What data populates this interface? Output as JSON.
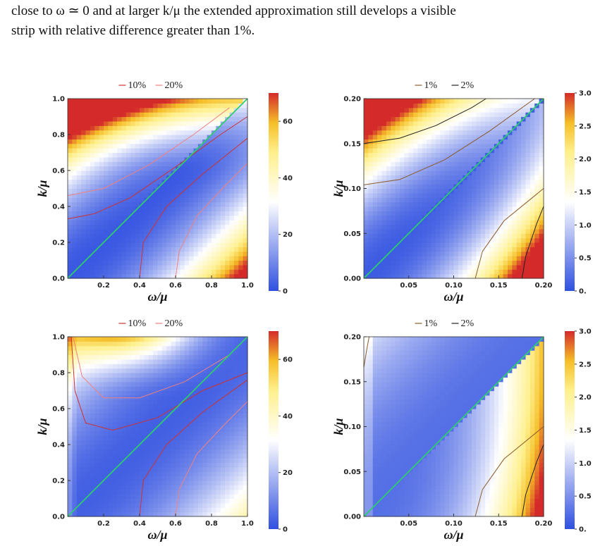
{
  "paragraph": {
    "line1": "close to ω ≃ 0 and at larger k/μ the extended approximation still develops a visible",
    "line2": "strip with relative difference greater than 1%."
  },
  "chart_data": [
    {
      "type": "heatmap",
      "panel": "top-left",
      "xlabel": "ω/μ",
      "ylabel": "k/μ",
      "xlim": [
        0,
        1.0
      ],
      "ylim": [
        0,
        1.0
      ],
      "x_ticks": [
        "0.2",
        "0.4",
        "0.6",
        "0.8",
        "1.0"
      ],
      "y_ticks": [
        "0.0",
        "0.2",
        "0.4",
        "0.6",
        "0.8",
        "1.0"
      ],
      "legend": [
        "10%",
        "20%"
      ],
      "contour_colors": [
        "#d03030",
        "#f08080"
      ],
      "colorbar": {
        "min": 0,
        "max": 70,
        "ticks": [
          "0",
          "20",
          "40",
          "60"
        ]
      },
      "colors": {
        "low": "#3050e0",
        "mid": "#ffffff",
        "high": "#d42a2a"
      }
    },
    {
      "type": "heatmap",
      "panel": "top-right",
      "xlabel": "ω/μ",
      "ylabel": "k/μ",
      "xlim": [
        0,
        0.2
      ],
      "ylim": [
        0,
        0.2
      ],
      "x_ticks": [
        "0.05",
        "0.10",
        "0.15",
        "0.20"
      ],
      "y_ticks": [
        "0.00",
        "0.05",
        "0.10",
        "0.15",
        "0.20"
      ],
      "legend": [
        "1%",
        "2%"
      ],
      "contour_colors": [
        "#8b5a2b",
        "#222222"
      ],
      "colorbar": {
        "min": 0,
        "max": 3.0,
        "ticks": [
          "0.",
          "0.5",
          "1.0",
          "1.5",
          "2.0",
          "2.5",
          "3.0"
        ]
      },
      "colors": {
        "low": "#3050e0",
        "mid": "#ffffff",
        "high": "#d42a2a"
      }
    },
    {
      "type": "heatmap",
      "panel": "bottom-left",
      "xlabel": "ω/μ",
      "ylabel": "k/μ",
      "xlim": [
        0,
        1.0
      ],
      "ylim": [
        0,
        1.0
      ],
      "x_ticks": [
        "0.2",
        "0.4",
        "0.6",
        "0.8",
        "1.0"
      ],
      "y_ticks": [
        "0.0",
        "0.2",
        "0.4",
        "0.6",
        "0.8",
        "1.0"
      ],
      "legend": [
        "10%",
        "20%"
      ],
      "contour_colors": [
        "#d03030",
        "#f08080"
      ],
      "colorbar": {
        "min": 0,
        "max": 70,
        "ticks": [
          "0",
          "20",
          "40",
          "60"
        ]
      },
      "colors": {
        "low": "#3050e0",
        "mid": "#ffffff",
        "high": "#d42a2a"
      }
    },
    {
      "type": "heatmap",
      "panel": "bottom-right",
      "xlabel": "ω/μ",
      "ylabel": "k/μ",
      "xlim": [
        0,
        0.2
      ],
      "ylim": [
        0,
        0.2
      ],
      "x_ticks": [
        "0.05",
        "0.10",
        "0.15",
        "0.20"
      ],
      "y_ticks": [
        "0.00",
        "0.05",
        "0.10",
        "0.15",
        "0.20"
      ],
      "legend": [
        "1%",
        "2%"
      ],
      "contour_colors": [
        "#8b5a2b",
        "#222222"
      ],
      "colorbar": {
        "min": 0,
        "max": 3.0,
        "ticks": [
          "0.",
          "0.5",
          "1.0",
          "1.5",
          "2.0",
          "2.5",
          "3.0"
        ]
      },
      "colors": {
        "low": "#3050e0",
        "mid": "#ffffff",
        "high": "#d42a2a"
      }
    }
  ]
}
